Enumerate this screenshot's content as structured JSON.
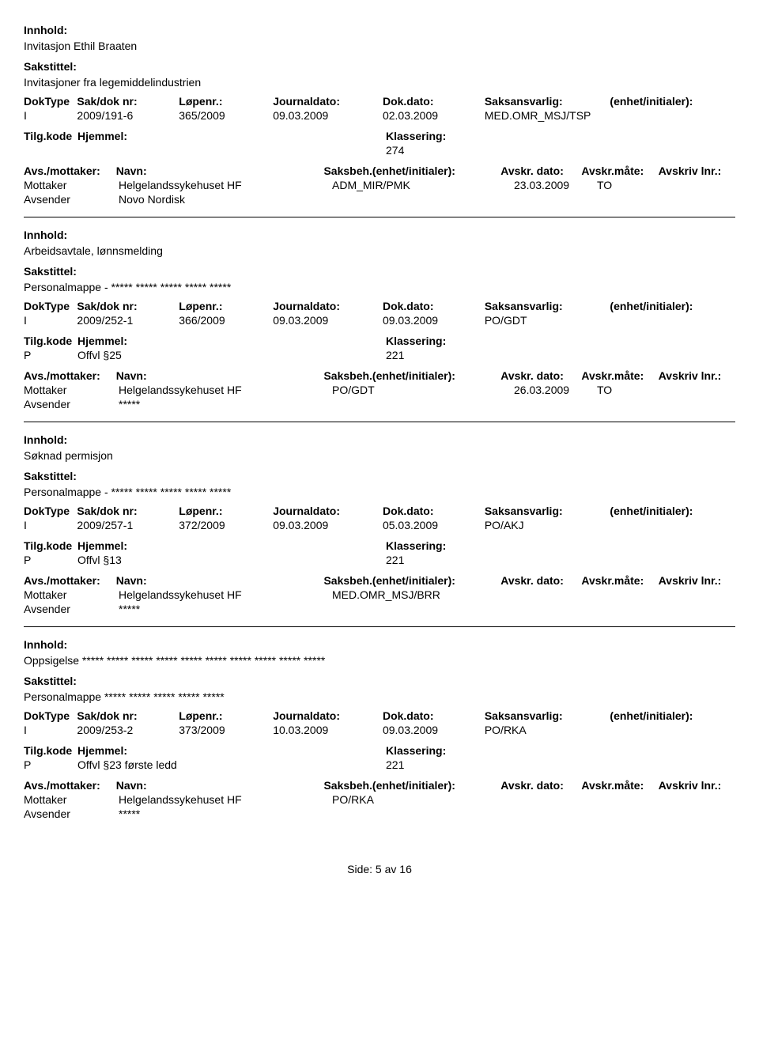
{
  "labels": {
    "innhold": "Innhold:",
    "sakstittel": "Sakstittel:",
    "doktype": "DokType",
    "sakdok": "Sak/dok nr:",
    "lopenr": "Løpenr.:",
    "journaldato": "Journaldato:",
    "dokdato": "Dok.dato:",
    "saksansvarlig": "Saksansvarlig:",
    "enhet_init": "(enhet/initialer):",
    "tilgkode": "Tilg.kode",
    "hjemmel": "Hjemmel:",
    "klassering": "Klassering:",
    "avs_mottaker": "Avs./mottaker:",
    "navn": "Navn:",
    "saksbeh": "Saksbeh.(enhet/initialer):",
    "avskr_dato": "Avskr. dato:",
    "avskr_maate": "Avskr.måte:",
    "avskriv_lnr": "Avskriv lnr.:",
    "mottaker": "Mottaker",
    "avsender": "Avsender"
  },
  "records": [
    {
      "innhold": "Invitasjon Ethil Braaten",
      "sakstittel": "Invitasjoner fra legemiddelindustrien",
      "doktype": "I",
      "sakdok": "2009/191-6",
      "lopenr": "365/2009",
      "journaldato": "09.03.2009",
      "dokdato": "02.03.2009",
      "saksansvarlig": "MED.OMR_MSJ/TSP",
      "tilgkode": "",
      "hjemmel": "",
      "klassering": "274",
      "parties": [
        {
          "role": "Mottaker",
          "name": "Helgelandssykehuset HF",
          "beh": "ADM_MIR/PMK",
          "adato": "23.03.2009",
          "amaate": "TO"
        },
        {
          "role": "Avsender",
          "name": "Novo Nordisk",
          "beh": "",
          "adato": "",
          "amaate": ""
        }
      ]
    },
    {
      "innhold": "Arbeidsavtale, lønnsmelding",
      "sakstittel": "Personalmappe - ***** ***** ***** ***** *****",
      "doktype": "I",
      "sakdok": "2009/252-1",
      "lopenr": "366/2009",
      "journaldato": "09.03.2009",
      "dokdato": "09.03.2009",
      "saksansvarlig": "PO/GDT",
      "tilgkode": "P",
      "hjemmel": "Offvl §25",
      "klassering": "221",
      "parties": [
        {
          "role": "Mottaker",
          "name": "Helgelandssykehuset HF",
          "beh": "PO/GDT",
          "adato": "26.03.2009",
          "amaate": "TO"
        },
        {
          "role": "Avsender",
          "name": "*****",
          "beh": "",
          "adato": "",
          "amaate": ""
        }
      ]
    },
    {
      "innhold": "Søknad permisjon",
      "sakstittel": "Personalmappe - ***** ***** ***** ***** *****",
      "doktype": "I",
      "sakdok": "2009/257-1",
      "lopenr": "372/2009",
      "journaldato": "09.03.2009",
      "dokdato": "05.03.2009",
      "saksansvarlig": "PO/AKJ",
      "tilgkode": "P",
      "hjemmel": "Offvl §13",
      "klassering": "221",
      "parties": [
        {
          "role": "Mottaker",
          "name": "Helgelandssykehuset HF",
          "beh": "MED.OMR_MSJ/BRR",
          "adato": "",
          "amaate": ""
        },
        {
          "role": "Avsender",
          "name": "*****",
          "beh": "",
          "adato": "",
          "amaate": ""
        }
      ]
    },
    {
      "innhold": "Oppsigelse ***** ***** ***** ***** ***** ***** ***** ***** ***** *****",
      "sakstittel": "Personalmappe ***** ***** ***** ***** *****",
      "doktype": "I",
      "sakdok": "2009/253-2",
      "lopenr": "373/2009",
      "journaldato": "10.03.2009",
      "dokdato": "09.03.2009",
      "saksansvarlig": "PO/RKA",
      "tilgkode": "P",
      "hjemmel": "Offvl §23 første ledd",
      "klassering": "221",
      "parties": [
        {
          "role": "Mottaker",
          "name": "Helgelandssykehuset HF",
          "beh": "PO/RKA",
          "adato": "",
          "amaate": ""
        },
        {
          "role": "Avsender",
          "name": "*****",
          "beh": "",
          "adato": "",
          "amaate": ""
        }
      ]
    }
  ],
  "footer": "Side:  5 av 16"
}
